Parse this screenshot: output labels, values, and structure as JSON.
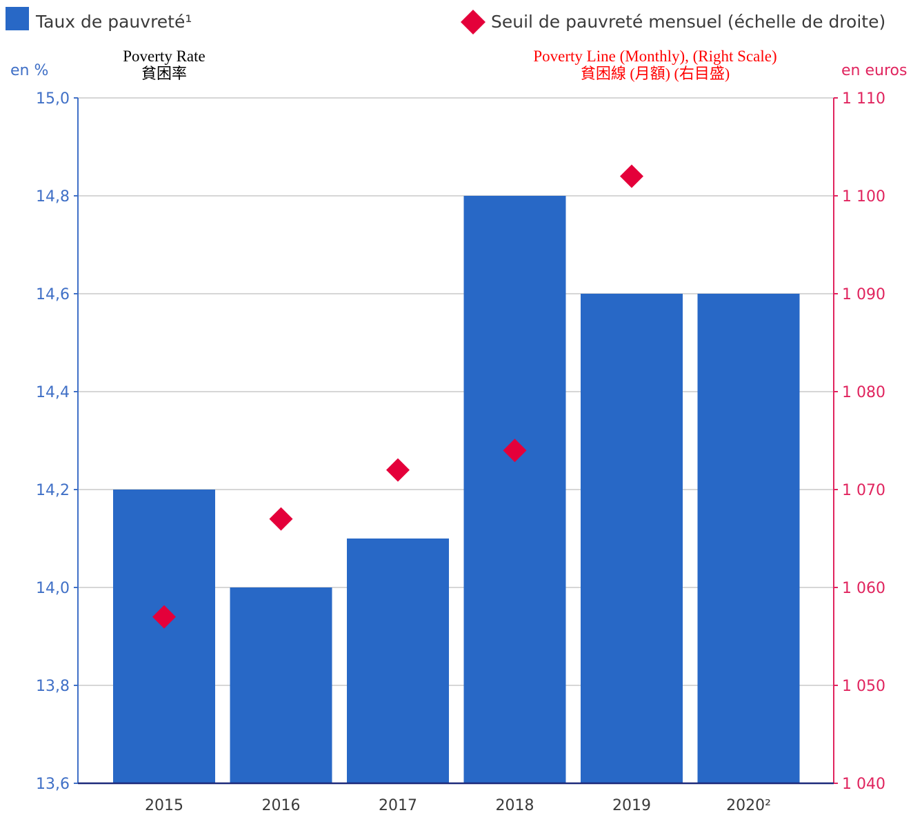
{
  "chart_data": {
    "type": "bar",
    "categories": [
      "2015",
      "2016",
      "2017",
      "2018",
      "2019",
      "2020²"
    ],
    "series": [
      {
        "name": "Taux de pauvreté¹",
        "name_en": "Poverty Rate",
        "name_ja": "貧困率",
        "type": "bar",
        "axis": "left",
        "values": [
          14.2,
          14.0,
          14.1,
          14.8,
          14.6,
          14.6
        ]
      },
      {
        "name": "Seuil de pauvreté mensuel (échelle de droite)",
        "name_en": "Poverty Line (Monthly), (Right Scale)",
        "name_ja": "貧困線 (月額) (右目盛)",
        "type": "scatter",
        "marker": "diamond",
        "axis": "right",
        "values": [
          1057,
          1067,
          1072,
          1074,
          1102,
          null
        ]
      }
    ],
    "left_axis": {
      "unit": "en %",
      "range": [
        13.6,
        15.0
      ],
      "ticks": [
        13.6,
        13.8,
        14.0,
        14.2,
        14.4,
        14.6,
        14.8,
        15.0
      ],
      "tick_labels": [
        "13,6",
        "13,8",
        "14,0",
        "14,2",
        "14,4",
        "14,6",
        "14,8",
        "15,0"
      ]
    },
    "right_axis": {
      "unit": "en euros",
      "range": [
        1040,
        1110
      ],
      "ticks": [
        1040,
        1050,
        1060,
        1070,
        1080,
        1090,
        1100,
        1110
      ],
      "tick_labels": [
        "1 040",
        "1 050",
        "1 060",
        "1 070",
        "1 080",
        "1 090",
        "1 100",
        "1 110"
      ]
    },
    "grid": true,
    "legend_position": "top",
    "colors": {
      "bar": "#2868c6",
      "marker": "#e4003a",
      "left_axis": "#3f6fc6",
      "right_axis": "#e0245e",
      "grid": "#c8c8c8",
      "baseline": "#1d2a7a",
      "annotation_black": "#000000",
      "annotation_red": "#ff0000"
    }
  }
}
